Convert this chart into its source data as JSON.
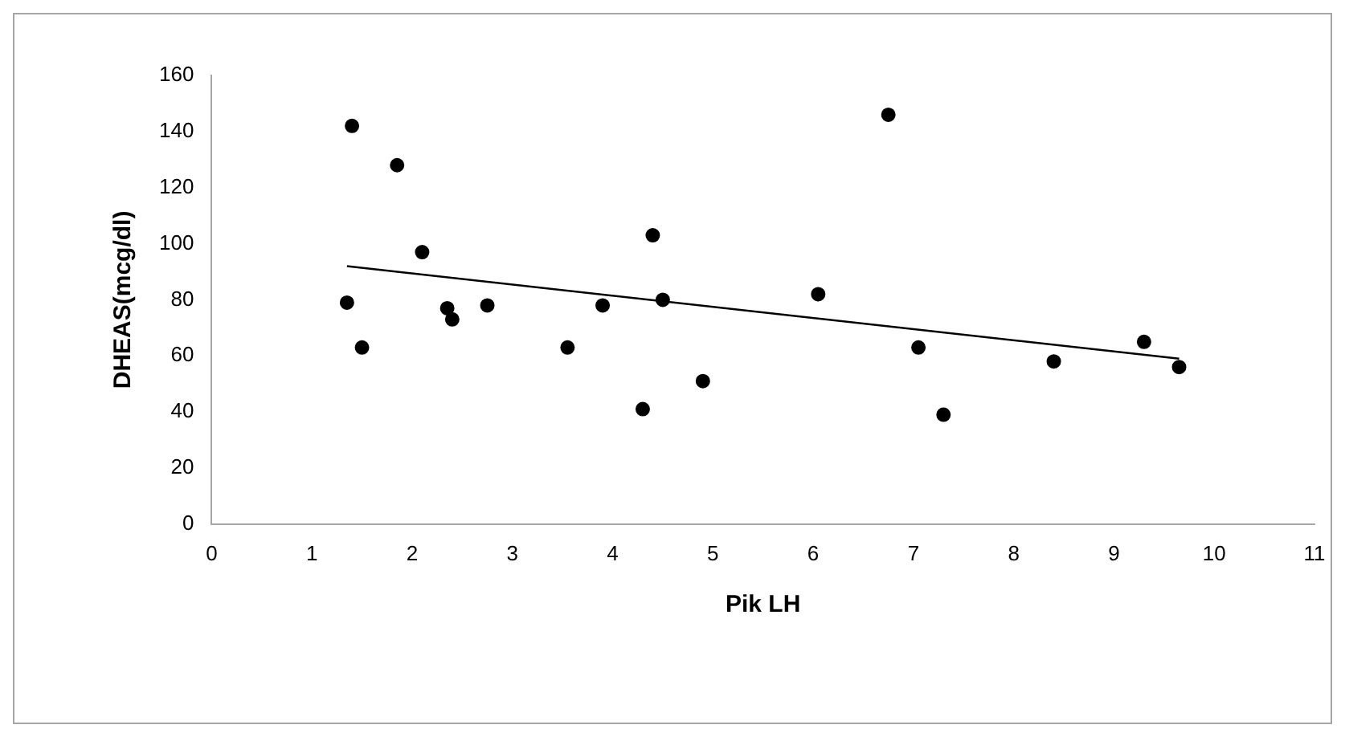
{
  "chart_data": {
    "type": "scatter",
    "xlabel": "Pik LH",
    "ylabel": "DHEAS(mcg/dl)",
    "xlim": [
      0,
      11
    ],
    "xticks": [
      0,
      1,
      2,
      3,
      4,
      5,
      6,
      7,
      8,
      9,
      10,
      11
    ],
    "ylim": [
      0,
      160
    ],
    "yticks": [
      0,
      20,
      40,
      60,
      80,
      100,
      120,
      140,
      160
    ],
    "grid": false,
    "legend": false,
    "marker": "circle",
    "series": [
      {
        "color": "#000000",
        "x": [
          1.35,
          1.4,
          1.5,
          1.85,
          2.1,
          2.35,
          2.4,
          2.75,
          3.55,
          3.9,
          4.3,
          4.4,
          4.5,
          4.9,
          6.05,
          6.75,
          7.05,
          7.3,
          8.4,
          9.3,
          9.65
        ],
        "values": [
          79,
          142,
          63,
          128,
          97,
          77,
          73,
          78,
          63,
          78,
          41,
          103,
          80,
          51,
          82,
          146,
          63,
          39,
          58,
          65,
          56
        ]
      },
      {
        "type": "line",
        "color": "#000000",
        "x": [
          1.35,
          9.65
        ],
        "values": [
          92,
          59
        ],
        "marker": "none"
      }
    ]
  }
}
